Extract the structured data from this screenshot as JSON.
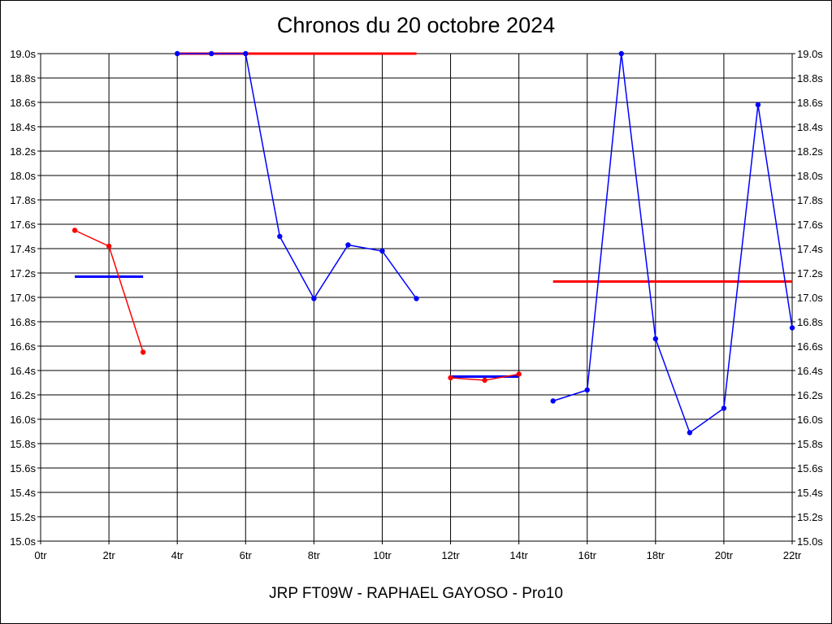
{
  "chart_data": {
    "type": "line",
    "title": "Chronos du 20 octobre 2024",
    "footer": "JRP FT09W - RAPHAEL GAYOSO - Pro10",
    "xlabel": "",
    "ylabel": "",
    "xlim": [
      0,
      22
    ],
    "ylim": [
      15.0,
      19.0
    ],
    "grid": true,
    "x_ticks": [
      {
        "value": 0,
        "label": "0tr"
      },
      {
        "value": 2,
        "label": "2tr"
      },
      {
        "value": 4,
        "label": "4tr"
      },
      {
        "value": 6,
        "label": "6tr"
      },
      {
        "value": 8,
        "label": "8tr"
      },
      {
        "value": 10,
        "label": "10tr"
      },
      {
        "value": 12,
        "label": "12tr"
      },
      {
        "value": 14,
        "label": "14tr"
      },
      {
        "value": 16,
        "label": "16tr"
      },
      {
        "value": 18,
        "label": "18tr"
      },
      {
        "value": 20,
        "label": "20tr"
      },
      {
        "value": 22,
        "label": "22tr"
      }
    ],
    "y_ticks": [
      {
        "value": 15.0,
        "label": "15.0s"
      },
      {
        "value": 15.2,
        "label": "15.2s"
      },
      {
        "value": 15.4,
        "label": "15.4s"
      },
      {
        "value": 15.6,
        "label": "15.6s"
      },
      {
        "value": 15.8,
        "label": "15.8s"
      },
      {
        "value": 16.0,
        "label": "16.0s"
      },
      {
        "value": 16.2,
        "label": "16.2s"
      },
      {
        "value": 16.4,
        "label": "16.4s"
      },
      {
        "value": 16.6,
        "label": "16.6s"
      },
      {
        "value": 16.8,
        "label": "16.8s"
      },
      {
        "value": 17.0,
        "label": "17.0s"
      },
      {
        "value": 17.2,
        "label": "17.2s"
      },
      {
        "value": 17.4,
        "label": "17.4s"
      },
      {
        "value": 17.6,
        "label": "17.6s"
      },
      {
        "value": 17.8,
        "label": "17.8s"
      },
      {
        "value": 18.0,
        "label": "18.0s"
      },
      {
        "value": 18.2,
        "label": "18.2s"
      },
      {
        "value": 18.4,
        "label": "18.4s"
      },
      {
        "value": 18.6,
        "label": "18.6s"
      },
      {
        "value": 18.8,
        "label": "18.8s"
      },
      {
        "value": 19.0,
        "label": "19.0s"
      }
    ],
    "series": [
      {
        "color": "#ff0000",
        "points": [
          [
            1,
            17.55
          ],
          [
            2,
            17.42
          ],
          [
            3,
            16.55
          ]
        ]
      },
      {
        "color": "#0000ff",
        "points": [
          [
            4,
            19.0
          ],
          [
            5,
            19.0
          ],
          [
            6,
            19.0
          ],
          [
            7,
            17.5
          ],
          [
            8,
            16.99
          ],
          [
            9,
            17.43
          ],
          [
            10,
            17.38
          ],
          [
            11,
            16.99
          ]
        ]
      },
      {
        "color": "#ff0000",
        "points": [
          [
            12,
            16.34
          ],
          [
            13,
            16.32
          ],
          [
            14,
            16.37
          ]
        ]
      },
      {
        "color": "#0000ff",
        "points": [
          [
            15,
            16.15
          ],
          [
            16,
            16.24
          ],
          [
            17,
            19.0
          ],
          [
            18,
            16.66
          ],
          [
            19,
            15.89
          ],
          [
            20,
            16.09
          ],
          [
            21,
            18.58
          ],
          [
            22,
            16.75
          ]
        ]
      }
    ],
    "average_lines": [
      {
        "color": "#0000ff",
        "x": [
          1,
          3
        ],
        "y": 17.17
      },
      {
        "color": "#ff0000",
        "x": [
          4,
          11
        ],
        "y": 19.0
      },
      {
        "color": "#0000ff",
        "x": [
          12,
          14
        ],
        "y": 16.35
      },
      {
        "color": "#ff0000",
        "x": [
          15,
          22
        ],
        "y": 17.13
      }
    ]
  }
}
